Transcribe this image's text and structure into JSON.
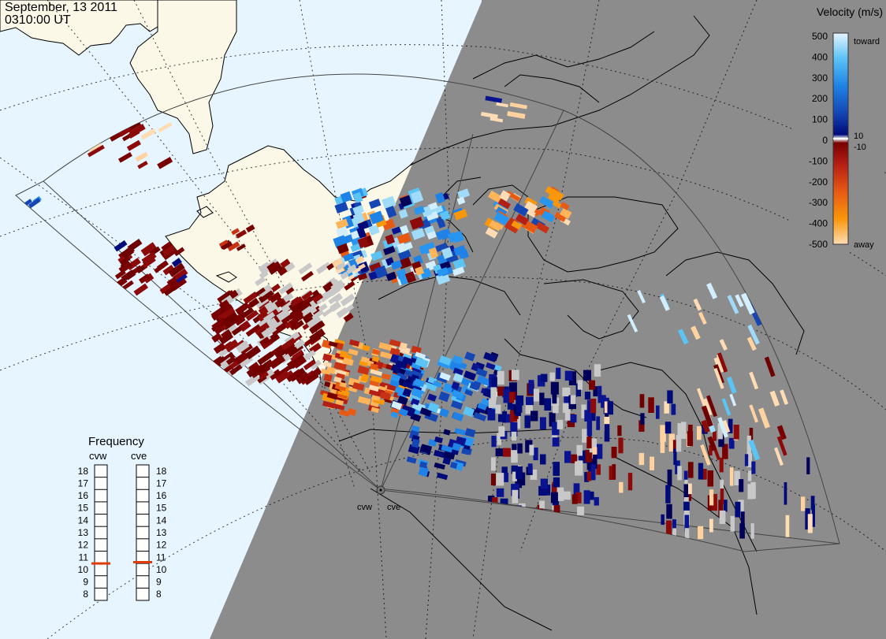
{
  "header": {
    "date": "September, 13 2011",
    "time": "0310:00 UT"
  },
  "legend": {
    "title": "Velocity (m/s)",
    "ticks": [
      "500",
      "400",
      "300",
      "200",
      "100",
      "0",
      "-100",
      "-200",
      "-300",
      "-400",
      "-500"
    ],
    "label_toward": "toward",
    "label_away": "away",
    "label_plus10": "10",
    "label_minus10": "-10"
  },
  "frequency": {
    "title": "Frequency",
    "radars": [
      {
        "name": "cvw",
        "value": 10.5
      },
      {
        "name": "cve",
        "value": 10.6
      }
    ],
    "ticks": [
      "18",
      "17",
      "16",
      "15",
      "14",
      "13",
      "12",
      "11",
      "10",
      "9",
      "8"
    ]
  },
  "radar_sites": [
    "cvw",
    "cve"
  ],
  "colors": {
    "ocean": "#e6f5ff",
    "land": "#fbf8e8",
    "night": "#8c8c8c",
    "ground_scatter": "#c8c8c8",
    "freq_marker": "#e03c0a"
  }
}
